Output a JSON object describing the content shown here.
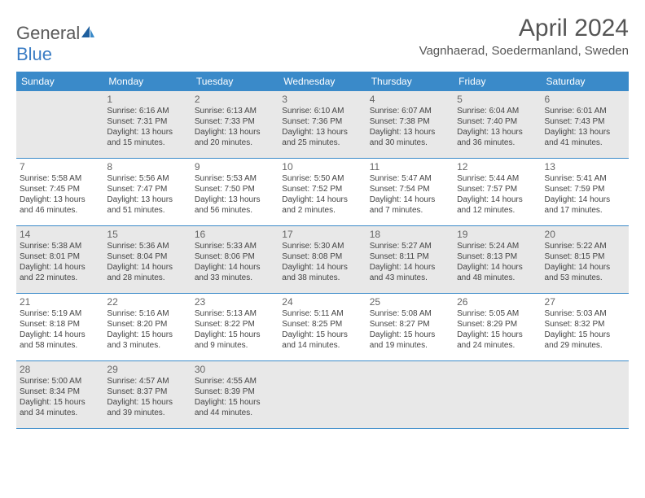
{
  "logo": {
    "part1": "General",
    "part2": "Blue"
  },
  "title": "April 2024",
  "location": "Vagnhaerad, Soedermanland, Sweden",
  "colors": {
    "header_bg": "#3a8ac9",
    "header_text": "#ffffff",
    "shaded_bg": "#e8e8e8",
    "border": "#3a8ac9",
    "text": "#444444",
    "logo_gray": "#5a5a5a",
    "logo_blue": "#3a7cc4"
  },
  "weekdays": [
    "Sunday",
    "Monday",
    "Tuesday",
    "Wednesday",
    "Thursday",
    "Friday",
    "Saturday"
  ],
  "weeks": [
    {
      "shaded": true,
      "days": [
        {
          "n": "",
          "sr": "",
          "ss": "",
          "dl": ""
        },
        {
          "n": "1",
          "sr": "Sunrise: 6:16 AM",
          "ss": "Sunset: 7:31 PM",
          "dl": "Daylight: 13 hours and 15 minutes."
        },
        {
          "n": "2",
          "sr": "Sunrise: 6:13 AM",
          "ss": "Sunset: 7:33 PM",
          "dl": "Daylight: 13 hours and 20 minutes."
        },
        {
          "n": "3",
          "sr": "Sunrise: 6:10 AM",
          "ss": "Sunset: 7:36 PM",
          "dl": "Daylight: 13 hours and 25 minutes."
        },
        {
          "n": "4",
          "sr": "Sunrise: 6:07 AM",
          "ss": "Sunset: 7:38 PM",
          "dl": "Daylight: 13 hours and 30 minutes."
        },
        {
          "n": "5",
          "sr": "Sunrise: 6:04 AM",
          "ss": "Sunset: 7:40 PM",
          "dl": "Daylight: 13 hours and 36 minutes."
        },
        {
          "n": "6",
          "sr": "Sunrise: 6:01 AM",
          "ss": "Sunset: 7:43 PM",
          "dl": "Daylight: 13 hours and 41 minutes."
        }
      ]
    },
    {
      "shaded": false,
      "days": [
        {
          "n": "7",
          "sr": "Sunrise: 5:58 AM",
          "ss": "Sunset: 7:45 PM",
          "dl": "Daylight: 13 hours and 46 minutes."
        },
        {
          "n": "8",
          "sr": "Sunrise: 5:56 AM",
          "ss": "Sunset: 7:47 PM",
          "dl": "Daylight: 13 hours and 51 minutes."
        },
        {
          "n": "9",
          "sr": "Sunrise: 5:53 AM",
          "ss": "Sunset: 7:50 PM",
          "dl": "Daylight: 13 hours and 56 minutes."
        },
        {
          "n": "10",
          "sr": "Sunrise: 5:50 AM",
          "ss": "Sunset: 7:52 PM",
          "dl": "Daylight: 14 hours and 2 minutes."
        },
        {
          "n": "11",
          "sr": "Sunrise: 5:47 AM",
          "ss": "Sunset: 7:54 PM",
          "dl": "Daylight: 14 hours and 7 minutes."
        },
        {
          "n": "12",
          "sr": "Sunrise: 5:44 AM",
          "ss": "Sunset: 7:57 PM",
          "dl": "Daylight: 14 hours and 12 minutes."
        },
        {
          "n": "13",
          "sr": "Sunrise: 5:41 AM",
          "ss": "Sunset: 7:59 PM",
          "dl": "Daylight: 14 hours and 17 minutes."
        }
      ]
    },
    {
      "shaded": true,
      "days": [
        {
          "n": "14",
          "sr": "Sunrise: 5:38 AM",
          "ss": "Sunset: 8:01 PM",
          "dl": "Daylight: 14 hours and 22 minutes."
        },
        {
          "n": "15",
          "sr": "Sunrise: 5:36 AM",
          "ss": "Sunset: 8:04 PM",
          "dl": "Daylight: 14 hours and 28 minutes."
        },
        {
          "n": "16",
          "sr": "Sunrise: 5:33 AM",
          "ss": "Sunset: 8:06 PM",
          "dl": "Daylight: 14 hours and 33 minutes."
        },
        {
          "n": "17",
          "sr": "Sunrise: 5:30 AM",
          "ss": "Sunset: 8:08 PM",
          "dl": "Daylight: 14 hours and 38 minutes."
        },
        {
          "n": "18",
          "sr": "Sunrise: 5:27 AM",
          "ss": "Sunset: 8:11 PM",
          "dl": "Daylight: 14 hours and 43 minutes."
        },
        {
          "n": "19",
          "sr": "Sunrise: 5:24 AM",
          "ss": "Sunset: 8:13 PM",
          "dl": "Daylight: 14 hours and 48 minutes."
        },
        {
          "n": "20",
          "sr": "Sunrise: 5:22 AM",
          "ss": "Sunset: 8:15 PM",
          "dl": "Daylight: 14 hours and 53 minutes."
        }
      ]
    },
    {
      "shaded": false,
      "days": [
        {
          "n": "21",
          "sr": "Sunrise: 5:19 AM",
          "ss": "Sunset: 8:18 PM",
          "dl": "Daylight: 14 hours and 58 minutes."
        },
        {
          "n": "22",
          "sr": "Sunrise: 5:16 AM",
          "ss": "Sunset: 8:20 PM",
          "dl": "Daylight: 15 hours and 3 minutes."
        },
        {
          "n": "23",
          "sr": "Sunrise: 5:13 AM",
          "ss": "Sunset: 8:22 PM",
          "dl": "Daylight: 15 hours and 9 minutes."
        },
        {
          "n": "24",
          "sr": "Sunrise: 5:11 AM",
          "ss": "Sunset: 8:25 PM",
          "dl": "Daylight: 15 hours and 14 minutes."
        },
        {
          "n": "25",
          "sr": "Sunrise: 5:08 AM",
          "ss": "Sunset: 8:27 PM",
          "dl": "Daylight: 15 hours and 19 minutes."
        },
        {
          "n": "26",
          "sr": "Sunrise: 5:05 AM",
          "ss": "Sunset: 8:29 PM",
          "dl": "Daylight: 15 hours and 24 minutes."
        },
        {
          "n": "27",
          "sr": "Sunrise: 5:03 AM",
          "ss": "Sunset: 8:32 PM",
          "dl": "Daylight: 15 hours and 29 minutes."
        }
      ]
    },
    {
      "shaded": true,
      "days": [
        {
          "n": "28",
          "sr": "Sunrise: 5:00 AM",
          "ss": "Sunset: 8:34 PM",
          "dl": "Daylight: 15 hours and 34 minutes."
        },
        {
          "n": "29",
          "sr": "Sunrise: 4:57 AM",
          "ss": "Sunset: 8:37 PM",
          "dl": "Daylight: 15 hours and 39 minutes."
        },
        {
          "n": "30",
          "sr": "Sunrise: 4:55 AM",
          "ss": "Sunset: 8:39 PM",
          "dl": "Daylight: 15 hours and 44 minutes."
        },
        {
          "n": "",
          "sr": "",
          "ss": "",
          "dl": ""
        },
        {
          "n": "",
          "sr": "",
          "ss": "",
          "dl": ""
        },
        {
          "n": "",
          "sr": "",
          "ss": "",
          "dl": ""
        },
        {
          "n": "",
          "sr": "",
          "ss": "",
          "dl": ""
        }
      ]
    }
  ]
}
